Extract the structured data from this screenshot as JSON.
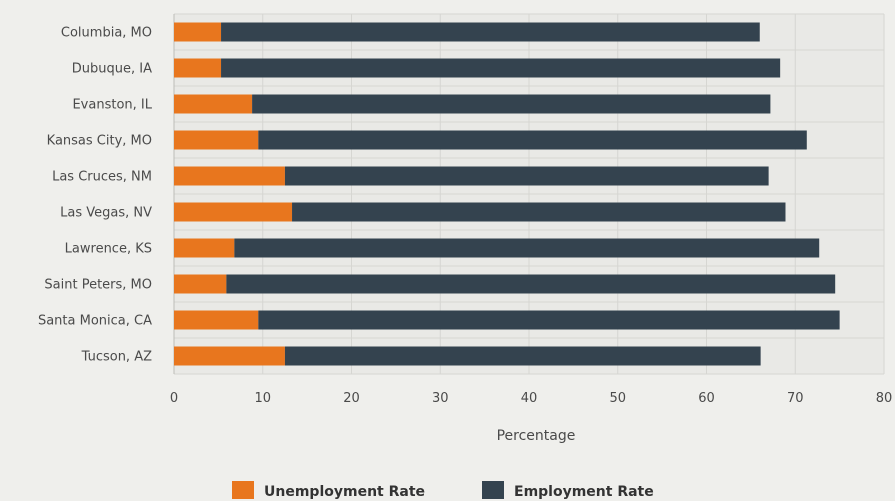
{
  "chart_data": {
    "type": "bar",
    "orientation": "horizontal",
    "stacked": true,
    "categories": [
      "Columbia, MO",
      "Dubuque, IA",
      "Evanston, IL",
      "Kansas City, MO",
      "Las Cruces, NM",
      "Las Vegas, NV",
      "Lawrence, KS",
      "Saint Peters, MO",
      "Santa Monica, CA",
      "Tucson, AZ"
    ],
    "series": [
      {
        "name": "Unemployment Rate",
        "color": "#e8761e",
        "values": [
          5.3,
          5.3,
          8.8,
          9.5,
          12.5,
          13.3,
          6.8,
          5.9,
          9.5,
          12.5
        ]
      },
      {
        "name": "Employment Rate",
        "color": "#34434f",
        "values": [
          60.7,
          63.0,
          58.4,
          61.8,
          54.5,
          55.6,
          65.9,
          68.6,
          65.5,
          53.6
        ]
      }
    ],
    "xlabel": "Percentage",
    "ylabel": "",
    "xlim": [
      0,
      80
    ],
    "xticks": [
      0,
      10,
      20,
      30,
      40,
      50,
      60,
      70,
      80
    ],
    "grid": true,
    "legend_position": "bottom"
  }
}
